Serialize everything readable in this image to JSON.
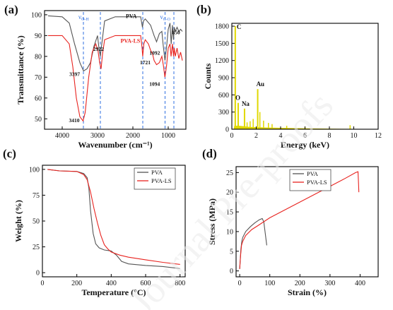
{
  "watermark": "Journal Pre-proofs",
  "chart_data": [
    {
      "panel": "(a)",
      "type": "line",
      "xlabel": "Wavenumber (cm⁻¹)",
      "ylabel": "Transmittance (%)",
      "xlim": [
        4500,
        500
      ],
      "ylim": [
        45,
        102
      ],
      "xticks": [
        4000,
        3000,
        2000,
        1000
      ],
      "yticks": [
        50,
        60,
        70,
        80,
        90,
        100
      ],
      "series": [
        {
          "name": "PVA",
          "color": "#555555",
          "points": [
            [
              4400,
              99.5
            ],
            [
              4000,
              99
            ],
            [
              3800,
              96
            ],
            [
              3650,
              86
            ],
            [
              3500,
              77
            ],
            [
              3397,
              73
            ],
            [
              3300,
              74
            ],
            [
              3200,
              77
            ],
            [
              3100,
              85
            ],
            [
              3000,
              90
            ],
            [
              2960,
              84
            ],
            [
              2922,
              80
            ],
            [
              2880,
              86
            ],
            [
              2800,
              97
            ],
            [
              2500,
              99
            ],
            [
              2200,
              99
            ],
            [
              1900,
              99
            ],
            [
              1780,
              99
            ],
            [
              1730,
              94
            ],
            [
              1700,
              97
            ],
            [
              1650,
              98
            ],
            [
              1500,
              95
            ],
            [
              1440,
              92
            ],
            [
              1400,
              90
            ],
            [
              1330,
              87
            ],
            [
              1250,
              91
            ],
            [
              1180,
              92
            ],
            [
              1140,
              85
            ],
            [
              1092,
              78
            ],
            [
              1050,
              84
            ],
            [
              1000,
              93
            ],
            [
              950,
              96
            ],
            [
              916,
              86
            ],
            [
              880,
              95
            ],
            [
              850,
              88
            ],
            [
              830,
              94
            ],
            [
              800,
              92
            ],
            [
              750,
              94
            ],
            [
              700,
              92
            ],
            [
              650,
              93
            ],
            [
              600,
              92
            ]
          ]
        },
        {
          "name": "PVA-LS",
          "color": "#e8231f",
          "points": [
            [
              4400,
              90
            ],
            [
              4000,
              90
            ],
            [
              3800,
              86
            ],
            [
              3700,
              75
            ],
            [
              3600,
              60
            ],
            [
              3500,
              51
            ],
            [
              3410,
              49
            ],
            [
              3350,
              53
            ],
            [
              3250,
              70
            ],
            [
              3150,
              82
            ],
            [
              3050,
              86
            ],
            [
              2990,
              83
            ],
            [
              2940,
              77
            ],
            [
              2900,
              74
            ],
            [
              2860,
              81
            ],
            [
              2800,
              88
            ],
            [
              2500,
              90
            ],
            [
              2200,
              90
            ],
            [
              1900,
              90
            ],
            [
              1780,
              90
            ],
            [
              1740,
              84
            ],
            [
              1721,
              80
            ],
            [
              1690,
              86
            ],
            [
              1650,
              88
            ],
            [
              1560,
              86
            ],
            [
              1500,
              83
            ],
            [
              1440,
              81
            ],
            [
              1400,
              78
            ],
            [
              1330,
              76
            ],
            [
              1250,
              77
            ],
            [
              1180,
              80
            ],
            [
              1140,
              76
            ],
            [
              1094,
              70
            ],
            [
              1050,
              75
            ],
            [
              1000,
              84
            ],
            [
              950,
              86
            ],
            [
              920,
              80
            ],
            [
              880,
              86
            ],
            [
              850,
              80
            ],
            [
              830,
              84
            ],
            [
              800,
              80
            ],
            [
              750,
              84
            ],
            [
              700,
              79
            ],
            [
              650,
              82
            ],
            [
              600,
              78
            ]
          ]
        }
      ],
      "annotations": [
        {
          "text": "3410",
          "x": 3410,
          "y": 49
        },
        {
          "text": "3397",
          "x": 3397,
          "y": 73
        },
        {
          "text": "2922",
          "x": 2922,
          "y": 80
        },
        {
          "text": "1721",
          "x": 1721,
          "y": 80
        },
        {
          "text": "1094",
          "x": 1094,
          "y": 70
        },
        {
          "text": "1092",
          "x": 1092,
          "y": 78
        },
        {
          "text": "850",
          "x": 850,
          "y": 88
        }
      ],
      "vlines": [
        3400,
        2920,
        1720,
        1090,
        840
      ],
      "band_labels": {
        "oh": "ν",
        "oh_sub": "O-H",
        "co": "ν",
        "co_sub": "C-O"
      }
    },
    {
      "panel": "(b)",
      "type": "bar",
      "xlabel": "Energy (keV)",
      "ylabel": "Counts",
      "xlim": [
        0,
        12
      ],
      "ylim": [
        0,
        1850
      ],
      "xticks": [
        0,
        2,
        4,
        6,
        8,
        10,
        12
      ],
      "yticks": [
        0,
        300,
        600,
        900,
        1200,
        1500,
        1800
      ],
      "color": "#e0d800",
      "peaks": [
        {
          "label": "C",
          "energy": 0.28,
          "counts": 1800
        },
        {
          "label": "O",
          "energy": 0.52,
          "counts": 460
        },
        {
          "label": "Na",
          "energy": 1.04,
          "counts": 360
        },
        {
          "label": "Au",
          "energy": 2.12,
          "counts": 700
        }
      ],
      "minor_peaks": [
        {
          "energy": 1.25,
          "counts": 120
        },
        {
          "energy": 1.5,
          "counts": 140
        },
        {
          "energy": 1.75,
          "counts": 180
        },
        {
          "energy": 2.3,
          "counts": 300
        },
        {
          "energy": 2.6,
          "counts": 150
        },
        {
          "energy": 3.0,
          "counts": 110
        },
        {
          "energy": 3.3,
          "counts": 90
        },
        {
          "energy": 4.5,
          "counts": 60
        },
        {
          "energy": 6.0,
          "counts": 40
        },
        {
          "energy": 9.7,
          "counts": 70
        }
      ]
    },
    {
      "panel": "(c)",
      "type": "line",
      "xlabel": "Temperature (°C)",
      "ylabel": "Weight (%)",
      "xlim": [
        0,
        830
      ],
      "ylim": [
        -4,
        104
      ],
      "xticks": [
        0,
        200,
        400,
        600,
        800
      ],
      "yticks": [
        0,
        25,
        50,
        75,
        100
      ],
      "legend": "top-right",
      "series": [
        {
          "name": "PVA",
          "color": "#555555",
          "points": [
            [
              30,
              100
            ],
            [
              100,
              98.5
            ],
            [
              200,
              98
            ],
            [
              240,
              96
            ],
            [
              260,
              92
            ],
            [
              270,
              82
            ],
            [
              280,
              60
            ],
            [
              295,
              38
            ],
            [
              310,
              28
            ],
            [
              330,
              24
            ],
            [
              360,
              22
            ],
            [
              400,
              21
            ],
            [
              430,
              17
            ],
            [
              460,
              11
            ],
            [
              500,
              8.5
            ],
            [
              600,
              7
            ],
            [
              700,
              6
            ],
            [
              800,
              4
            ]
          ]
        },
        {
          "name": "PVA-LS",
          "color": "#e8231f",
          "points": [
            [
              30,
              100
            ],
            [
              100,
              98.5
            ],
            [
              200,
              98
            ],
            [
              240,
              95
            ],
            [
              260,
              90
            ],
            [
              280,
              78
            ],
            [
              300,
              62
            ],
            [
              320,
              48
            ],
            [
              340,
              36
            ],
            [
              360,
              27
            ],
            [
              380,
              23
            ],
            [
              400,
              20
            ],
            [
              450,
              17
            ],
            [
              500,
              15
            ],
            [
              600,
              12.5
            ],
            [
              700,
              10
            ],
            [
              800,
              8
            ]
          ]
        }
      ]
    },
    {
      "panel": "(d)",
      "type": "line",
      "xlabel": "Strain (%)",
      "ylabel": "Stress (MPa)",
      "xlim": [
        -12,
        460
      ],
      "ylim": [
        -1.5,
        26.5
      ],
      "xticks": [
        0,
        100,
        200,
        300,
        400
      ],
      "yticks": [
        0,
        5,
        10,
        15,
        20,
        25
      ],
      "legend": "top-left",
      "series": [
        {
          "name": "PVA",
          "color": "#555555",
          "points": [
            [
              0,
              0.5
            ],
            [
              2,
              3
            ],
            [
              4,
              5.5
            ],
            [
              7,
              7.5
            ],
            [
              10,
              8.5
            ],
            [
              20,
              10
            ],
            [
              35,
              11.2
            ],
            [
              50,
              12.2
            ],
            [
              65,
              13
            ],
            [
              75,
              13.3
            ],
            [
              80,
              12.5
            ],
            [
              85,
              9.5
            ],
            [
              90,
              6.5
            ]
          ]
        },
        {
          "name": "PVA-LS",
          "color": "#e8231f",
          "points": [
            [
              0,
              0.5
            ],
            [
              3,
              4
            ],
            [
              6,
              6.5
            ],
            [
              10,
              7.5
            ],
            [
              20,
              9
            ],
            [
              40,
              10.5
            ],
            [
              60,
              11.5
            ],
            [
              100,
              13.5
            ],
            [
              150,
              15.5
            ],
            [
              200,
              17.5
            ],
            [
              250,
              19.5
            ],
            [
              300,
              21.5
            ],
            [
              350,
              23.5
            ],
            [
              385,
              25
            ],
            [
              393,
              25.2
            ],
            [
              395,
              22
            ],
            [
              396,
              20
            ]
          ]
        }
      ]
    }
  ]
}
